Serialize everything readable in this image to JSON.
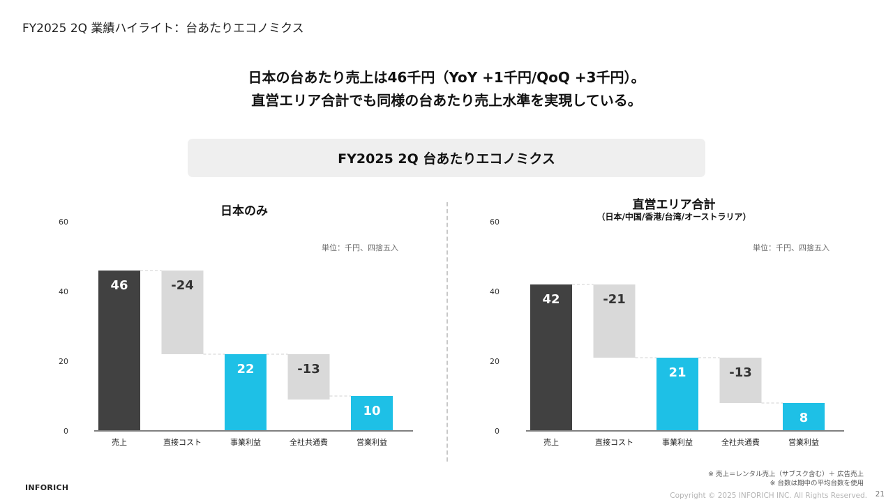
{
  "page_title": "FY2025 2Q 業績ハイライト：台あたりエコノミクス",
  "headline": {
    "line1": "日本の台あたり売上は46千円（YoY +1千円/QoQ +3千円）。",
    "line2": "直営エリア合計でも同様の台あたり売上水準を実現している。"
  },
  "banner": "FY2025 2Q 台あたりエコノミクス",
  "colors": {
    "revenue": "#414141",
    "cost": "#d9d9d9",
    "profit": "#1ec0e6",
    "baseline": "#7f7f7f",
    "connector": "#d0d0d0"
  },
  "chart_data": [
    {
      "type": "waterfall",
      "title": "日本のみ",
      "subtitle": "",
      "unit_note": "単位：千円、四捨五入",
      "categories": [
        "売上",
        "直接コスト",
        "事業利益",
        "全社共通費",
        "営業利益"
      ],
      "values": [
        46,
        -24,
        22,
        -13,
        10
      ],
      "labels": [
        "46",
        "-24",
        "22",
        "-13",
        "10"
      ],
      "kinds": [
        "total",
        "delta",
        "total",
        "delta",
        "total"
      ],
      "ylim": [
        0,
        60
      ],
      "yticks": [
        0,
        20,
        40,
        60
      ]
    },
    {
      "type": "waterfall",
      "title": "直営エリア合計",
      "subtitle": "（日本/中国/香港/台湾/オーストラリア）",
      "unit_note": "単位：千円、四捨五入",
      "categories": [
        "売上",
        "直接コスト",
        "事業利益",
        "全社共通費",
        "営業利益"
      ],
      "values": [
        42,
        -21,
        21,
        -13,
        8
      ],
      "labels": [
        "42",
        "-21",
        "21",
        "-13",
        "8"
      ],
      "kinds": [
        "total",
        "delta",
        "total",
        "delta",
        "total"
      ],
      "ylim": [
        0,
        60
      ],
      "yticks": [
        0,
        20,
        40,
        60
      ]
    }
  ],
  "footnotes": {
    "line1": "※ 売上＝レンタル売上（サブスク含む）＋ 広告売上",
    "line2": "※ 台数は期中の平均台数を使用"
  },
  "brand": "INFORICH",
  "copyright": "Copyright © 2025 INFORICH INC. All Rights Reserved.",
  "page_number": "21"
}
